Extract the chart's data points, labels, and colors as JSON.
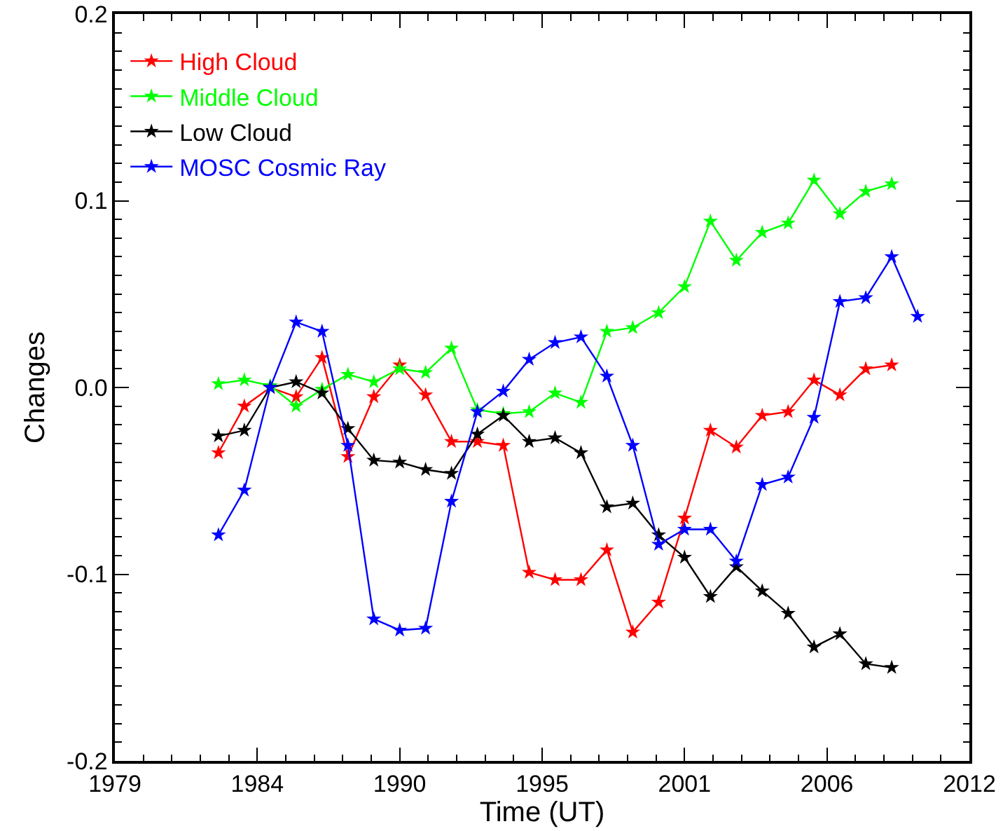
{
  "chart_data": {
    "type": "line",
    "xlabel": "Time (UT)",
    "ylabel": "Changes",
    "x": [
      1983,
      1984,
      1985,
      1986,
      1987,
      1988,
      1989,
      1990,
      1991,
      1992,
      1993,
      1994,
      1995,
      1996,
      1997,
      1998,
      1999,
      2000,
      2001,
      2002,
      2003,
      2004,
      2005,
      2006,
      2007,
      2008,
      2009
    ],
    "series": [
      {
        "name": "High Cloud",
        "color": "#ff0000",
        "values": [
          -0.035,
          -0.01,
          0.0,
          -0.005,
          0.016,
          -0.037,
          -0.005,
          0.012,
          -0.004,
          -0.029,
          -0.029,
          -0.031,
          -0.099,
          -0.103,
          -0.103,
          -0.087,
          -0.131,
          -0.115,
          -0.07,
          -0.023,
          -0.032,
          -0.015,
          -0.013,
          0.004,
          -0.004,
          0.01,
          0.012
        ]
      },
      {
        "name": "Middle Cloud",
        "color": "#00ff00",
        "values": [
          0.002,
          0.004,
          0.001,
          -0.01,
          -0.001,
          0.007,
          0.003,
          0.01,
          0.008,
          0.021,
          -0.012,
          -0.014,
          -0.013,
          -0.003,
          -0.008,
          0.03,
          0.032,
          0.04,
          0.054,
          0.089,
          0.068,
          0.083,
          0.088,
          0.111,
          0.093,
          0.105,
          0.109
        ]
      },
      {
        "name": "Low Cloud",
        "color": "#000000",
        "values": [
          -0.026,
          -0.023,
          0.0,
          0.003,
          -0.003,
          -0.022,
          -0.039,
          -0.04,
          -0.044,
          -0.046,
          -0.025,
          -0.015,
          -0.029,
          -0.027,
          -0.035,
          -0.064,
          -0.062,
          -0.079,
          -0.091,
          -0.112,
          -0.096,
          -0.109,
          -0.121,
          -0.139,
          -0.132,
          -0.148,
          -0.15
        ]
      },
      {
        "name": "MOSC Cosmic Ray",
        "color": "#0000ff",
        "x": [
          1983,
          1984,
          1985,
          1986,
          1987,
          1988,
          1989,
          1990,
          1991,
          1992,
          1993,
          1994,
          1995,
          1996,
          1997,
          1998,
          1999,
          2000,
          2001,
          2002,
          2003,
          2004,
          2005,
          2006,
          2007,
          2008,
          2009,
          2010
        ],
        "values": [
          -0.079,
          -0.055,
          0.0,
          0.035,
          0.03,
          -0.031,
          -0.124,
          -0.13,
          -0.129,
          -0.061,
          -0.013,
          -0.002,
          0.015,
          0.024,
          0.027,
          0.006,
          -0.031,
          -0.084,
          -0.076,
          -0.076,
          -0.093,
          -0.052,
          -0.048,
          -0.016,
          0.046,
          0.048,
          0.07,
          0.038
        ]
      }
    ],
    "xlim": [
      1979,
      2012
    ],
    "xticks": [
      1979,
      {
        "value": 1984.5,
        "label": "1984"
      },
      1990,
      {
        "value": 1995.5,
        "label": "1995"
      },
      2001,
      {
        "value": 2006.5,
        "label": "2006"
      },
      2012
    ],
    "ylim": [
      -0.2,
      0.2
    ],
    "yticks": [
      {
        "value": -0.2,
        "label": "-0.2"
      },
      {
        "value": -0.1,
        "label": "-0.1"
      },
      {
        "value": 0,
        "label": "0.0"
      },
      {
        "value": 0.1,
        "label": "0.1"
      },
      {
        "value": 0.2,
        "label": "0.2"
      }
    ],
    "grid": false,
    "legend": "top left",
    "marker": "star",
    "line_style": "solid"
  }
}
